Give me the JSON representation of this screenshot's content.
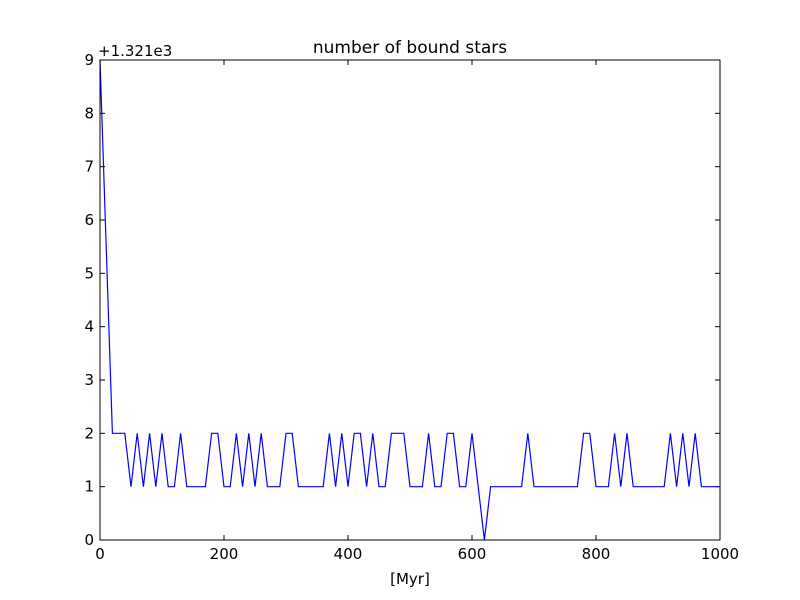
{
  "chart_data": {
    "type": "line",
    "title": "number of bound stars",
    "xlabel": "[Myr]",
    "ylabel": "",
    "offset_label": "+1.321e3",
    "xlim": [
      0,
      1000
    ],
    "ylim": [
      0,
      9
    ],
    "xticks": [
      0,
      200,
      400,
      600,
      800,
      1000
    ],
    "yticks": [
      0,
      1,
      2,
      3,
      4,
      5,
      6,
      7,
      8,
      9
    ],
    "grid": false,
    "line_color": "#0000ff",
    "series": [
      {
        "x": [
          0,
          20,
          30,
          40,
          50,
          60,
          70,
          80,
          90,
          100,
          110,
          120,
          130,
          140,
          150,
          160,
          170,
          180,
          190,
          200,
          210,
          220,
          230,
          240,
          250,
          260,
          270,
          280,
          290,
          300,
          310,
          320,
          330,
          340,
          350,
          360,
          370,
          380,
          390,
          400,
          410,
          420,
          430,
          440,
          450,
          460,
          470,
          480,
          490,
          500,
          510,
          520,
          530,
          540,
          550,
          560,
          570,
          580,
          590,
          600,
          610,
          620,
          630,
          640,
          650,
          660,
          670,
          680,
          690,
          700,
          710,
          720,
          730,
          740,
          750,
          760,
          770,
          780,
          790,
          800,
          810,
          820,
          830,
          840,
          850,
          860,
          870,
          880,
          890,
          900,
          910,
          920,
          930,
          940,
          950,
          960,
          970,
          980,
          990,
          1000
        ],
        "y": [
          9,
          2,
          2,
          2,
          1,
          2,
          1,
          2,
          1,
          2,
          1,
          1,
          2,
          1,
          1,
          1,
          1,
          2,
          2,
          1,
          1,
          2,
          1,
          2,
          1,
          2,
          1,
          1,
          1,
          2,
          2,
          1,
          1,
          1,
          1,
          1,
          2,
          1,
          2,
          1,
          2,
          2,
          1,
          2,
          1,
          1,
          2,
          2,
          2,
          1,
          1,
          1,
          2,
          1,
          1,
          2,
          2,
          1,
          1,
          2,
          1,
          0,
          1,
          1,
          1,
          1,
          1,
          1,
          2,
          1,
          1,
          1,
          1,
          1,
          1,
          1,
          1,
          2,
          2,
          1,
          1,
          1,
          2,
          1,
          2,
          1,
          1,
          1,
          1,
          1,
          1,
          2,
          1,
          2,
          1,
          2,
          1,
          1,
          1,
          1
        ]
      }
    ]
  }
}
